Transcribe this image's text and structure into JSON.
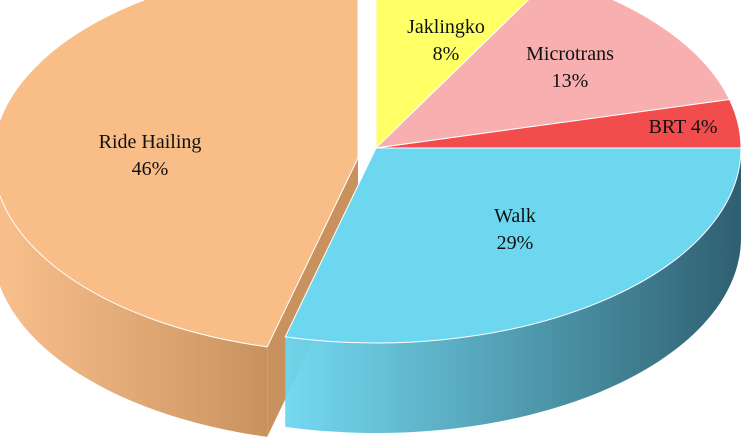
{
  "chart_data": {
    "type": "pie",
    "title": "",
    "categories": [
      "Jaklingko",
      "Microtrans",
      "BRT",
      "Walk",
      "Ride Hailing"
    ],
    "values": [
      8,
      13,
      4,
      29,
      46
    ],
    "labels": [
      {
        "name": "Jaklingko",
        "value": "8%"
      },
      {
        "name": "Microtrans",
        "value": "13%"
      },
      {
        "name": "BRT",
        "value": "4%"
      },
      {
        "name": "Walk",
        "value": "29%"
      },
      {
        "name": "Ride Hailing",
        "value": "46%"
      }
    ],
    "colors": [
      "#FFFF66",
      "#F7AFAF",
      "#F24C4C",
      "#6DD7F0",
      "#F9BD87"
    ],
    "side_colors": [
      "#CFCF52",
      "#C98D8D",
      "#B73A3A",
      "#2E5F70",
      "#C8925E"
    ],
    "exploded": [
      "Ride Hailing"
    ],
    "legend": "none",
    "style": "3d-pie"
  }
}
